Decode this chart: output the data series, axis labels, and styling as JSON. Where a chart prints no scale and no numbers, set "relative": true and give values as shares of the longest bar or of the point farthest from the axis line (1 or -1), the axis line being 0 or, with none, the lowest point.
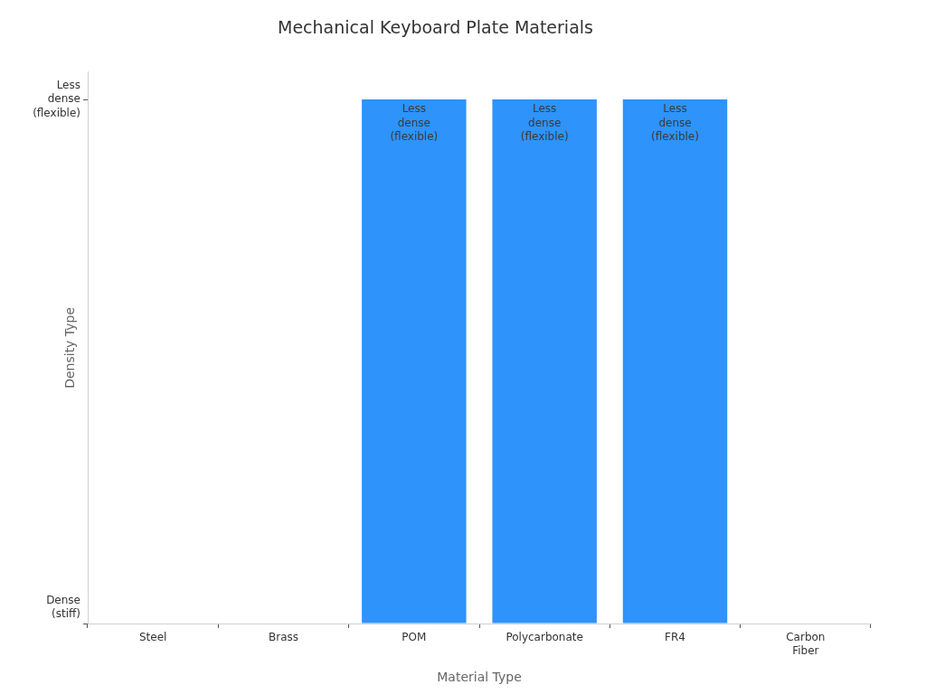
{
  "chart_data": {
    "type": "bar",
    "title": "Mechanical Keyboard Plate Materials",
    "xlabel": "Material Type",
    "ylabel": "Density Type",
    "categories": [
      "Steel",
      "Brass",
      "POM",
      "Polycarbonate",
      "FR4",
      "Carbon Fiber"
    ],
    "values": [
      0,
      0,
      1,
      1,
      1,
      0
    ],
    "color": "#2e93fa",
    "relative": true,
    "annotations": [
      "Dense (stiff)",
      "Less dense (flexible)",
      {
        "text": "Less dense (flexible)",
        "x": "POM",
        "y": 1
      },
      {
        "text": "Less dense (flexible)",
        "x": "Polycarbonate",
        "y": 1
      },
      {
        "text": "Less dense (flexible)",
        "x": "FR4",
        "y": 1
      }
    ]
  }
}
